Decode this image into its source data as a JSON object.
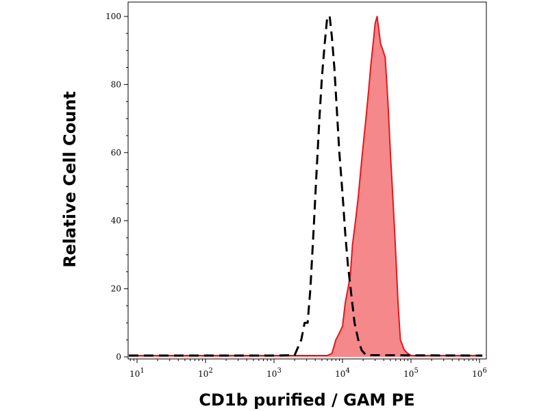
{
  "chart_data": {
    "type": "area",
    "xlabel": "CD1b purified / GAM PE",
    "ylabel": "Relative Cell Count",
    "x_scale": "log",
    "xlim": [
      7,
      120000
    ],
    "ylim": [
      0,
      100
    ],
    "y_ticks": [
      {
        "value": 0,
        "label": "0"
      },
      {
        "value": 20,
        "label": "20"
      },
      {
        "value": 40,
        "label": "40"
      },
      {
        "value": 60,
        "label": "60"
      },
      {
        "value": 80,
        "label": "80"
      },
      {
        "value": 100,
        "label": "100"
      }
    ],
    "x_ticks": [
      {
        "value": 10,
        "base": "10",
        "exp": "1"
      },
      {
        "value": 100,
        "base": "10",
        "exp": "2"
      },
      {
        "value": 1000,
        "base": "10",
        "exp": "3"
      },
      {
        "value": 10000,
        "base": "10",
        "exp": "4"
      },
      {
        "value": 100000,
        "base": "10",
        "exp": "5"
      },
      {
        "value": 1000000,
        "base": "10",
        "exp": "6"
      }
    ],
    "grid": false,
    "series": [
      {
        "style": "dashed",
        "color": "#000000",
        "points": [
          [
            7,
            0.4
          ],
          [
            1000,
            0.4
          ],
          [
            2000,
            0.5
          ],
          [
            2500,
            5
          ],
          [
            2800,
            10
          ],
          [
            3100,
            10
          ],
          [
            3400,
            20
          ],
          [
            3800,
            38
          ],
          [
            4200,
            55
          ],
          [
            4600,
            70
          ],
          [
            5000,
            82
          ],
          [
            5500,
            92
          ],
          [
            6000,
            100
          ],
          [
            6500,
            100
          ],
          [
            7000,
            94
          ],
          [
            7600,
            85
          ],
          [
            8300,
            72
          ],
          [
            9000,
            60
          ],
          [
            10000,
            48
          ],
          [
            11000,
            36
          ],
          [
            12000,
            27
          ],
          [
            13500,
            18
          ],
          [
            15000,
            10
          ],
          [
            17000,
            5
          ],
          [
            19000,
            2
          ],
          [
            22000,
            0.5
          ],
          [
            1100000,
            0.4
          ]
        ]
      },
      {
        "style": "filled",
        "color": "#e8151b",
        "fill": "#f4888a",
        "points": [
          [
            7,
            0.4
          ],
          [
            6000,
            0.4
          ],
          [
            7000,
            1
          ],
          [
            7500,
            3
          ],
          [
            8000,
            5
          ],
          [
            9000,
            7
          ],
          [
            10000,
            9
          ],
          [
            11000,
            16
          ],
          [
            12000,
            20
          ],
          [
            13000,
            24
          ],
          [
            14000,
            33
          ],
          [
            15500,
            40
          ],
          [
            17000,
            47
          ],
          [
            18500,
            55
          ],
          [
            20000,
            62
          ],
          [
            22000,
            70
          ],
          [
            24000,
            78
          ],
          [
            26000,
            86
          ],
          [
            28000,
            92
          ],
          [
            30000,
            98
          ],
          [
            32000,
            100
          ],
          [
            34000,
            96
          ],
          [
            36000,
            92
          ],
          [
            39000,
            90
          ],
          [
            42000,
            88
          ],
          [
            46000,
            75
          ],
          [
            50000,
            60
          ],
          [
            55000,
            45
          ],
          [
            60000,
            30
          ],
          [
            65000,
            15
          ],
          [
            70000,
            5
          ],
          [
            80000,
            2
          ],
          [
            90000,
            1
          ],
          [
            100000,
            0.4
          ],
          [
            1100000,
            0.4
          ]
        ]
      }
    ]
  }
}
